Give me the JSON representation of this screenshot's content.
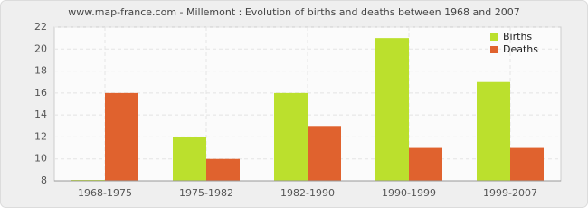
{
  "chart_data": {
    "type": "bar",
    "title": "www.map-france.com - Millemont : Evolution of births and deaths between 1968 and 2007",
    "categories": [
      "1968-1975",
      "1975-1982",
      "1982-1990",
      "1990-1999",
      "1999-2007"
    ],
    "series": [
      {
        "name": "Births",
        "color": "#bbe02d",
        "values": [
          8,
          12,
          16,
          21,
          17
        ]
      },
      {
        "name": "Deaths",
        "color": "#e0622e",
        "values": [
          16,
          10,
          13,
          11,
          11
        ]
      }
    ],
    "ylim": [
      8,
      22
    ],
    "yticks": [
      8,
      10,
      12,
      14,
      16,
      18,
      20,
      22
    ],
    "grid": true,
    "legend": "top-right"
  }
}
